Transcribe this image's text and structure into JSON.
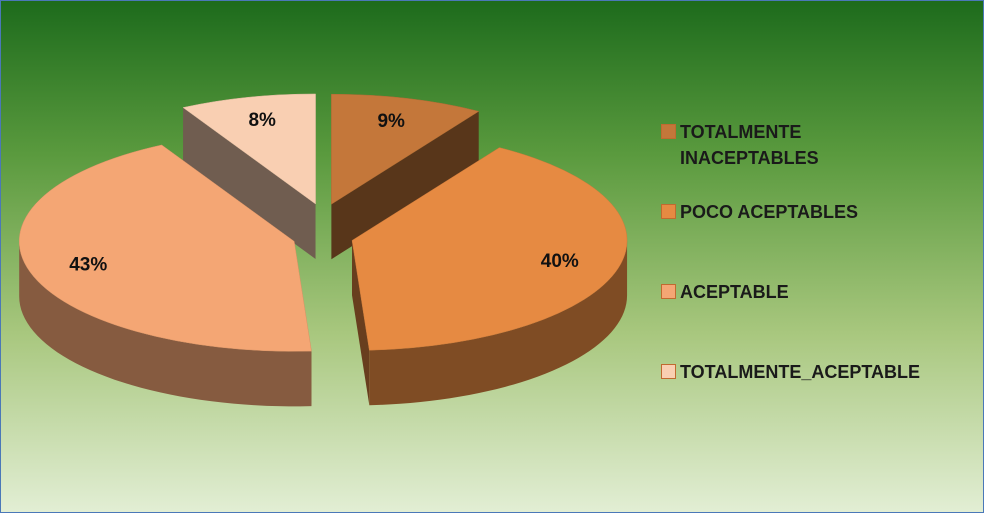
{
  "chart_data": {
    "type": "pie3d",
    "categories": [
      "TOTALMENTE INACEPTABLES",
      "POCO ACEPTABLES",
      "ACEPTABLE",
      "TOTALMENTE_ACEPTABLE"
    ],
    "values": [
      9,
      40,
      43,
      8
    ],
    "value_labels": [
      "9%",
      "40%",
      "43%",
      "8%"
    ],
    "colors": [
      "#c4773a",
      "#e68a42",
      "#f4a674",
      "#f9cfb2"
    ],
    "legend": "right"
  }
}
